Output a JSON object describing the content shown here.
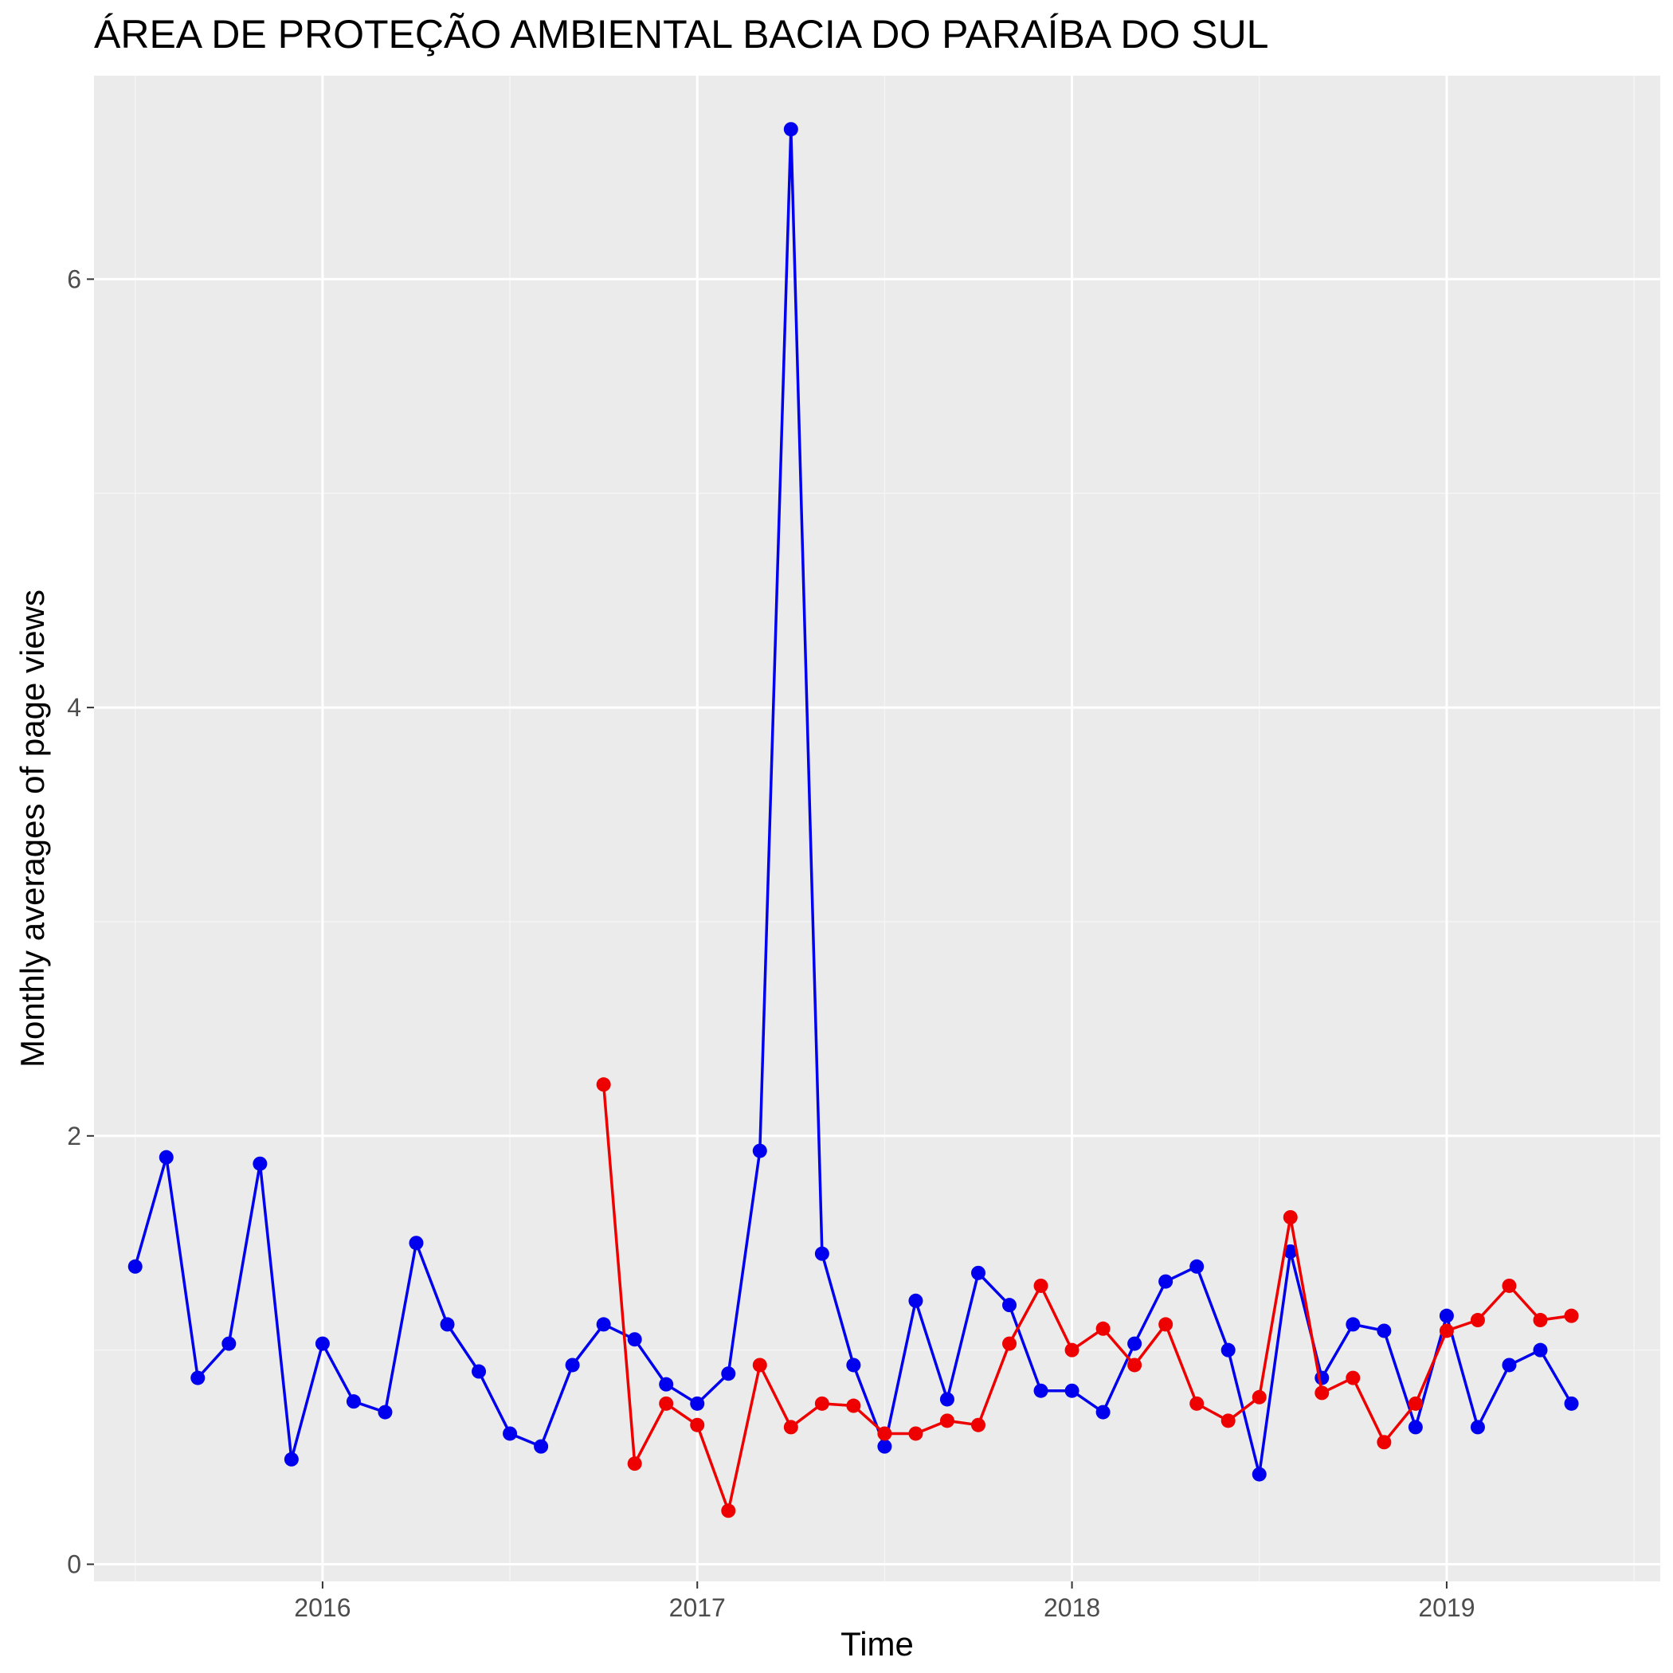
{
  "chart_data": {
    "type": "line",
    "title": "ÁREA DE PROTEÇÃO AMBIENTAL BACIA DO PARAÍBA DO SUL",
    "xlabel": "Time",
    "ylabel": "Monthly averages of page views",
    "xlim": [
      2015.39,
      2019.57
    ],
    "ylim": [
      -0.08,
      6.95
    ],
    "x_ticks": [
      2016,
      2017,
      2018,
      2019
    ],
    "x_tick_labels": [
      "2016",
      "2017",
      "2018",
      "2019"
    ],
    "y_ticks": [
      0,
      2,
      4,
      6
    ],
    "y_tick_labels": [
      "0",
      "2",
      "4",
      "6"
    ],
    "grid": true,
    "legend": "none",
    "series": [
      {
        "color": "#0000ee",
        "x": [
          2015.5,
          2015.583,
          2015.667,
          2015.75,
          2015.833,
          2015.917,
          2016.0,
          2016.083,
          2016.167,
          2016.25,
          2016.333,
          2016.417,
          2016.5,
          2016.583,
          2016.667,
          2016.75,
          2016.833,
          2016.917,
          2017.0,
          2017.083,
          2017.167,
          2017.25,
          2017.333,
          2017.417,
          2017.5,
          2017.583,
          2017.667,
          2017.75,
          2017.833,
          2017.917,
          2018.0,
          2018.083,
          2018.167,
          2018.25,
          2018.333,
          2018.417,
          2018.5,
          2018.583,
          2018.667,
          2018.75,
          2018.833,
          2018.917,
          2019.0,
          2019.083,
          2019.167,
          2019.25,
          2019.333
        ],
        "y": [
          1.39,
          1.9,
          0.87,
          1.03,
          1.87,
          0.49,
          1.03,
          0.76,
          0.71,
          1.5,
          1.12,
          0.9,
          0.61,
          0.55,
          0.93,
          1.12,
          1.05,
          0.84,
          0.75,
          0.89,
          1.93,
          6.7,
          1.45,
          0.93,
          0.55,
          1.23,
          0.77,
          1.36,
          1.21,
          0.81,
          0.81,
          0.71,
          1.03,
          1.32,
          1.39,
          1.0,
          0.42,
          1.46,
          0.87,
          1.12,
          1.09,
          0.64,
          1.16,
          0.64,
          0.93,
          1.0,
          0.75
        ]
      },
      {
        "color": "#ee0000",
        "x": [
          2016.75,
          2016.833,
          2016.917,
          2017.0,
          2017.083,
          2017.167,
          2017.25,
          2017.333,
          2017.417,
          2017.5,
          2017.583,
          2017.667,
          2017.75,
          2017.833,
          2017.917,
          2018.0,
          2018.083,
          2018.167,
          2018.25,
          2018.333,
          2018.417,
          2018.5,
          2018.583,
          2018.667,
          2018.75,
          2018.833,
          2018.917,
          2019.0,
          2019.083,
          2019.167,
          2019.25,
          2019.333
        ],
        "y": [
          2.24,
          0.47,
          0.75,
          0.65,
          0.25,
          0.93,
          0.64,
          0.75,
          0.74,
          0.61,
          0.61,
          0.67,
          0.65,
          1.03,
          1.3,
          1.0,
          1.1,
          0.93,
          1.12,
          0.75,
          0.67,
          0.78,
          1.62,
          0.8,
          0.87,
          0.57,
          0.75,
          1.09,
          1.14,
          1.3,
          1.14,
          1.16
        ]
      }
    ]
  },
  "colors": {
    "panel_background": "#ebebeb",
    "grid_major": "#ffffff",
    "grid_minor": "#f5f5f5",
    "tick_mark": "#333333"
  }
}
